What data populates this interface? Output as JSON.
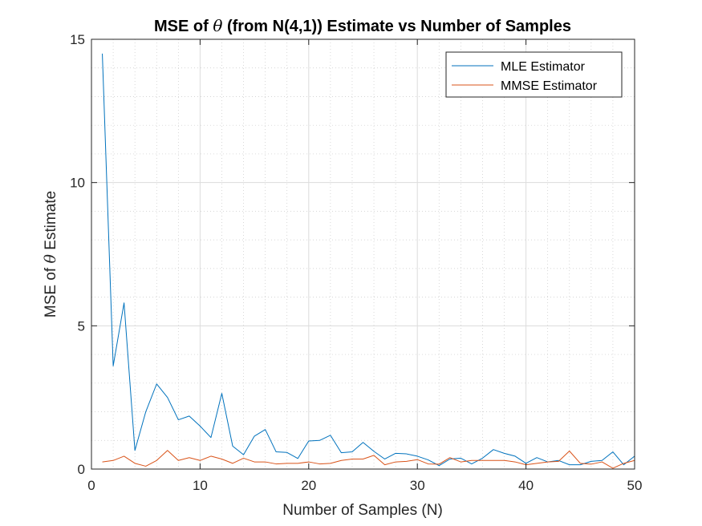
{
  "chart_data": {
    "type": "line",
    "title_parts": [
      "MSE of ",
      "θ",
      " (from N(4,1)) Estimate vs Number of Samples"
    ],
    "xlabel": "Number of Samples (N)",
    "ylabel_parts": [
      "MSE of ",
      "θ",
      " Estimate"
    ],
    "xlim": [
      0,
      50
    ],
    "ylim": [
      0,
      15
    ],
    "xticks": [
      "0",
      "10",
      "20",
      "30",
      "40",
      "50"
    ],
    "yticks": [
      "0",
      "5",
      "10",
      "15"
    ],
    "grid": true,
    "minor_grid": true,
    "legend_position": "top-right",
    "x": [
      1,
      2,
      3,
      4,
      5,
      6,
      7,
      8,
      9,
      10,
      11,
      12,
      13,
      14,
      15,
      16,
      17,
      18,
      19,
      20,
      21,
      22,
      23,
      24,
      25,
      26,
      27,
      28,
      29,
      30,
      31,
      32,
      33,
      34,
      35,
      36,
      37,
      38,
      39,
      40,
      41,
      42,
      43,
      44,
      45,
      46,
      47,
      48,
      49,
      50
    ],
    "series": [
      {
        "name": "MLE Estimator",
        "color": "#0072BD",
        "values": [
          14.5,
          3.6,
          5.8,
          0.65,
          2.0,
          2.97,
          2.5,
          1.72,
          1.85,
          1.5,
          1.1,
          2.64,
          0.8,
          0.5,
          1.15,
          1.38,
          0.6,
          0.58,
          0.37,
          0.98,
          1.0,
          1.18,
          0.57,
          0.6,
          0.93,
          0.62,
          0.35,
          0.55,
          0.53,
          0.45,
          0.32,
          0.12,
          0.35,
          0.38,
          0.18,
          0.38,
          0.68,
          0.55,
          0.45,
          0.2,
          0.4,
          0.25,
          0.3,
          0.15,
          0.15,
          0.27,
          0.3,
          0.6,
          0.15,
          0.45
        ]
      },
      {
        "name": "MMSE Estimator",
        "color": "#D95319",
        "values": [
          0.25,
          0.3,
          0.45,
          0.2,
          0.1,
          0.3,
          0.65,
          0.3,
          0.4,
          0.3,
          0.45,
          0.35,
          0.2,
          0.38,
          0.25,
          0.25,
          0.18,
          0.2,
          0.2,
          0.25,
          0.18,
          0.2,
          0.3,
          0.35,
          0.35,
          0.48,
          0.15,
          0.25,
          0.27,
          0.33,
          0.18,
          0.17,
          0.4,
          0.25,
          0.3,
          0.3,
          0.3,
          0.3,
          0.25,
          0.15,
          0.2,
          0.25,
          0.27,
          0.63,
          0.2,
          0.17,
          0.25,
          0.03,
          0.2,
          0.3
        ]
      }
    ]
  }
}
